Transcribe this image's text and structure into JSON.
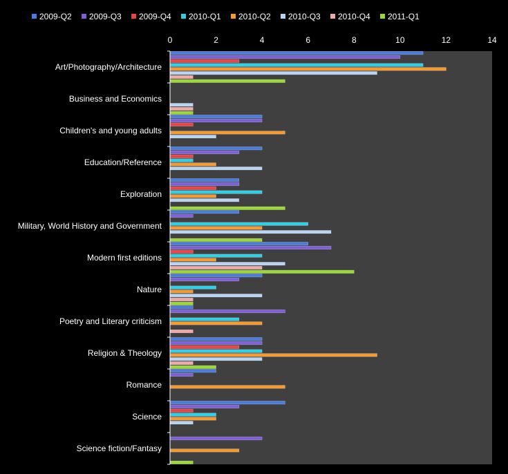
{
  "chart_data": {
    "type": "bar",
    "orientation": "horizontal",
    "title": "",
    "xlabel": "",
    "ylabel": "",
    "xlim": [
      0,
      14
    ],
    "x_ticks": [
      "0",
      "2",
      "4",
      "6",
      "8",
      "10",
      "12",
      "14"
    ],
    "grid": false,
    "legend_position": "top",
    "categories": [
      "Art/Photography/Architecture",
      "Business and Economics",
      "Children's and young adults",
      "Education/Reference",
      "Exploration",
      "Military, World History and Government",
      "Modern first editions",
      "Nature",
      "Poetry and Literary criticism",
      "Religion & Theology",
      "Romance",
      "Science",
      "Science fiction/Fantasy"
    ],
    "series": [
      {
        "name": "2009-Q2",
        "color": "#4a7ce0",
        "values": [
          11,
          0,
          4,
          4,
          3,
          3,
          6,
          4,
          1,
          4,
          2,
          5,
          0
        ]
      },
      {
        "name": "2009-Q3",
        "color": "#7f5fd8",
        "values": [
          10,
          0,
          4,
          3,
          3,
          1,
          7,
          3,
          5,
          4,
          1,
          3,
          4
        ]
      },
      {
        "name": "2009-Q4",
        "color": "#e84646",
        "values": [
          3,
          0,
          1,
          1,
          2,
          0,
          1,
          0,
          0,
          3,
          0,
          1,
          0
        ]
      },
      {
        "name": "2010-Q1",
        "color": "#2fd0e6",
        "values": [
          11,
          0,
          0,
          1,
          4,
          6,
          4,
          2,
          3,
          4,
          0,
          2,
          0
        ]
      },
      {
        "name": "2010-Q2",
        "color": "#f59a30",
        "values": [
          12,
          0,
          5,
          2,
          2,
          4,
          2,
          1,
          4,
          9,
          5,
          2,
          3
        ]
      },
      {
        "name": "2010-Q3",
        "color": "#b8d4f0",
        "values": [
          9,
          1,
          2,
          4,
          3,
          7,
          5,
          4,
          0,
          4,
          0,
          1,
          0
        ]
      },
      {
        "name": "2010-Q4",
        "color": "#f0a8a8",
        "values": [
          1,
          1,
          0,
          0,
          0,
          0,
          4,
          1,
          1,
          1,
          0,
          0,
          0
        ]
      },
      {
        "name": "2011-Q1",
        "color": "#9ad834",
        "values": [
          5,
          1,
          0,
          0,
          5,
          4,
          8,
          1,
          0,
          2,
          0,
          0,
          1
        ]
      }
    ],
    "colors": {
      "background": "#000000",
      "plot_area": "#404040",
      "text": "#ffffff"
    }
  }
}
